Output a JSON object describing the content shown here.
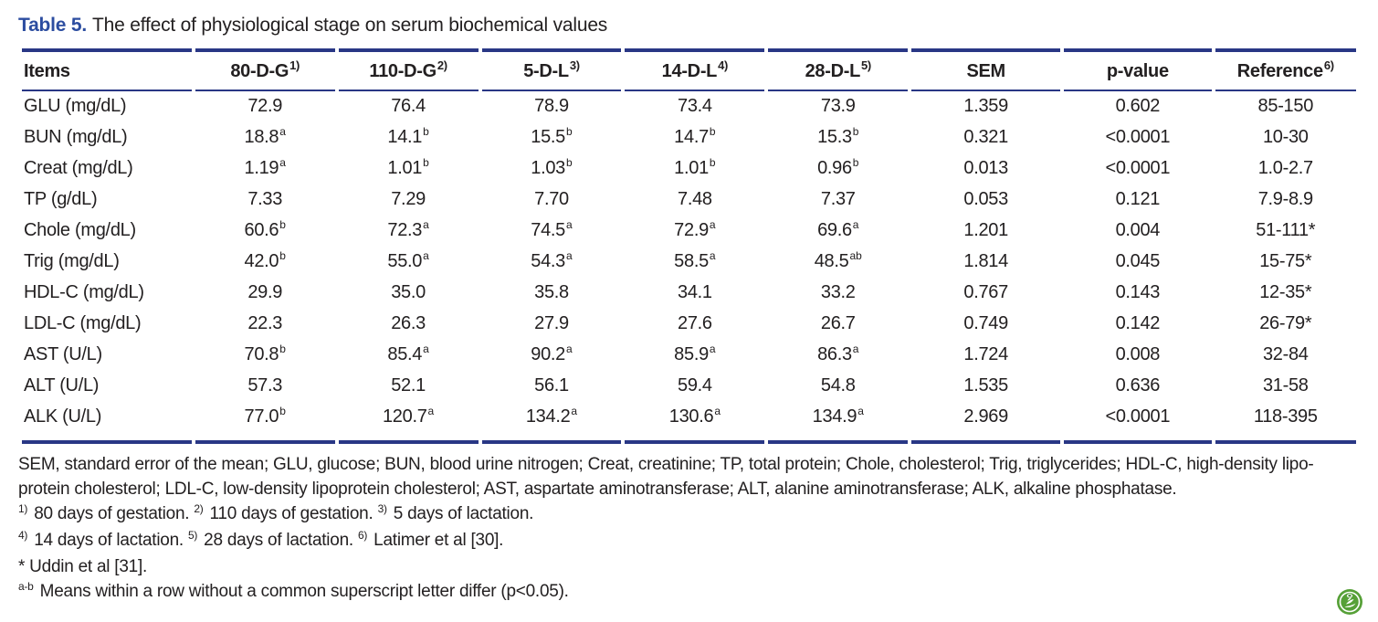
{
  "title": {
    "label": "Table 5.",
    "text": "The effect of physiological stage on serum biochemical values"
  },
  "table": {
    "columns": [
      {
        "label": "Items",
        "sup": ""
      },
      {
        "label": "80-D-G",
        "sup": "1)"
      },
      {
        "label": "110-D-G",
        "sup": "2)"
      },
      {
        "label": "5-D-L",
        "sup": "3)"
      },
      {
        "label": "14-D-L",
        "sup": "4)"
      },
      {
        "label": "28-D-L",
        "sup": "5)"
      },
      {
        "label": "SEM",
        "sup": ""
      },
      {
        "label": "p-value",
        "sup": ""
      },
      {
        "label": "Reference",
        "sup": "6)"
      }
    ],
    "rows": [
      {
        "item": "GLU (mg/dL)",
        "cells": [
          {
            "v": "72.9"
          },
          {
            "v": "76.4"
          },
          {
            "v": "78.9"
          },
          {
            "v": "73.4"
          },
          {
            "v": "73.9"
          },
          {
            "v": "1.359"
          },
          {
            "v": "0.602"
          },
          {
            "v": "85-150"
          }
        ]
      },
      {
        "item": "BUN (mg/dL)",
        "cells": [
          {
            "v": "18.8",
            "s": "a"
          },
          {
            "v": "14.1",
            "s": "b"
          },
          {
            "v": "15.5",
            "s": "b"
          },
          {
            "v": "14.7",
            "s": "b"
          },
          {
            "v": "15.3",
            "s": "b"
          },
          {
            "v": "0.321"
          },
          {
            "v": "<0.0001"
          },
          {
            "v": "10-30"
          }
        ]
      },
      {
        "item": "Creat (mg/dL)",
        "cells": [
          {
            "v": "1.19",
            "s": "a"
          },
          {
            "v": "1.01",
            "s": "b"
          },
          {
            "v": "1.03",
            "s": "b"
          },
          {
            "v": "1.01",
            "s": "b"
          },
          {
            "v": "0.96",
            "s": "b"
          },
          {
            "v": "0.013"
          },
          {
            "v": "<0.0001"
          },
          {
            "v": "1.0-2.7"
          }
        ]
      },
      {
        "item": "TP (g/dL)",
        "cells": [
          {
            "v": "7.33"
          },
          {
            "v": "7.29"
          },
          {
            "v": "7.70"
          },
          {
            "v": "7.48"
          },
          {
            "v": "7.37"
          },
          {
            "v": "0.053"
          },
          {
            "v": "0.121"
          },
          {
            "v": "7.9-8.9"
          }
        ]
      },
      {
        "item": "Chole (mg/dL)",
        "cells": [
          {
            "v": "60.6",
            "s": "b"
          },
          {
            "v": "72.3",
            "s": "a"
          },
          {
            "v": "74.5",
            "s": "a"
          },
          {
            "v": "72.9",
            "s": "a"
          },
          {
            "v": "69.6",
            "s": "a"
          },
          {
            "v": "1.201"
          },
          {
            "v": "0.004"
          },
          {
            "v": "51-111*"
          }
        ]
      },
      {
        "item": "Trig (mg/dL)",
        "cells": [
          {
            "v": "42.0",
            "s": "b"
          },
          {
            "v": "55.0",
            "s": "a"
          },
          {
            "v": "54.3",
            "s": "a"
          },
          {
            "v": "58.5",
            "s": "a"
          },
          {
            "v": "48.5",
            "s": "ab"
          },
          {
            "v": "1.814"
          },
          {
            "v": "0.045"
          },
          {
            "v": "15-75*"
          }
        ]
      },
      {
        "item": "HDL-C (mg/dL)",
        "cells": [
          {
            "v": "29.9"
          },
          {
            "v": "35.0"
          },
          {
            "v": "35.8"
          },
          {
            "v": "34.1"
          },
          {
            "v": "33.2"
          },
          {
            "v": "0.767"
          },
          {
            "v": "0.143"
          },
          {
            "v": "12-35*"
          }
        ]
      },
      {
        "item": "LDL-C (mg/dL)",
        "cells": [
          {
            "v": "22.3"
          },
          {
            "v": "26.3"
          },
          {
            "v": "27.9"
          },
          {
            "v": "27.6"
          },
          {
            "v": "26.7"
          },
          {
            "v": "0.749"
          },
          {
            "v": "0.142"
          },
          {
            "v": "26-79*"
          }
        ]
      },
      {
        "item": "AST (U/L)",
        "cells": [
          {
            "v": "70.8",
            "s": "b"
          },
          {
            "v": "85.4",
            "s": "a"
          },
          {
            "v": "90.2",
            "s": "a"
          },
          {
            "v": "85.9",
            "s": "a"
          },
          {
            "v": "86.3",
            "s": "a"
          },
          {
            "v": "1.724"
          },
          {
            "v": "0.008"
          },
          {
            "v": "32-84"
          }
        ]
      },
      {
        "item": "ALT (U/L)",
        "cells": [
          {
            "v": "57.3"
          },
          {
            "v": "52.1"
          },
          {
            "v": "56.1"
          },
          {
            "v": "59.4"
          },
          {
            "v": "54.8"
          },
          {
            "v": "1.535"
          },
          {
            "v": "0.636"
          },
          {
            "v": "31-58"
          }
        ]
      },
      {
        "item": "ALK (U/L)",
        "cells": [
          {
            "v": "77.0",
            "s": "b"
          },
          {
            "v": "120.7",
            "s": "a"
          },
          {
            "v": "134.2",
            "s": "a"
          },
          {
            "v": "130.6",
            "s": "a"
          },
          {
            "v": "134.9",
            "s": "a"
          },
          {
            "v": "2.969"
          },
          {
            "v": "<0.0001"
          },
          {
            "v": "118-395"
          }
        ]
      }
    ]
  },
  "footnotes": {
    "abbr_lines": [
      "SEM, standard error of the mean; GLU, glucose; BUN, blood urine nitrogen; Creat, creatinine; TP, total protein; Chole, cholesterol; Trig, triglycerides; HDL-C, high-density lipo-",
      "protein cholesterol; LDL-C, low-density lipoprotein cholesterol; AST, aspartate aminotransferase; ALT, alanine aminotransferase; ALK, alkaline phosphatase."
    ],
    "sup_lines": [
      {
        "segments": [
          {
            "sup": "1)",
            "text": " 80 days of gestation. "
          },
          {
            "sup": "2)",
            "text": " 110 days of gestation. "
          },
          {
            "sup": "3)",
            "text": " 5 days of lactation."
          }
        ]
      },
      {
        "segments": [
          {
            "sup": "4)",
            "text": " 14 days of lactation. "
          },
          {
            "sup": "5)",
            "text": " 28 days of lactation. "
          },
          {
            "sup": "6)",
            "text": " Latimer et al [30]."
          }
        ]
      }
    ],
    "star_line": "* Uddin et al [31].",
    "ab_line": {
      "sup": "a-b",
      "text": " Means within a row without a common superscript letter differ (p<0.05)."
    }
  },
  "logo": {
    "name": "journal-logo",
    "color": "#56a037"
  },
  "colors": {
    "title_blue": "#2c4da0",
    "rule_navy": "#293785",
    "text": "#232021",
    "logo_green": "#56a037"
  }
}
